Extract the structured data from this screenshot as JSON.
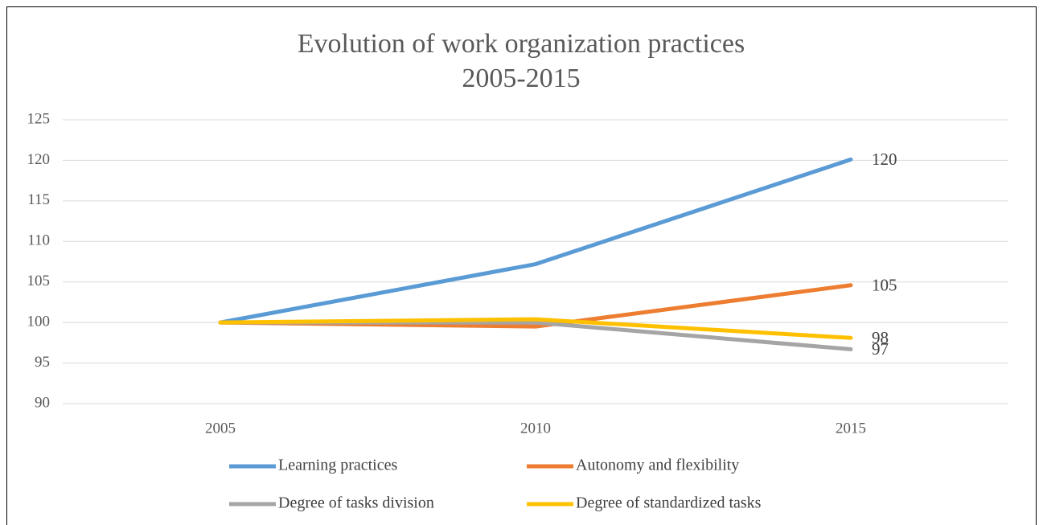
{
  "chart_data": {
    "type": "line",
    "title": "Evolution of work organization practices",
    "subtitle": "2005-2015",
    "categories": [
      "2005",
      "2010",
      "2015"
    ],
    "series": [
      {
        "name": "Learning practices",
        "color": "#5b9bd5",
        "values": [
          100,
          107.2,
          120.1
        ],
        "value_labels": [
          null,
          null,
          "120"
        ]
      },
      {
        "name": "Autonomy and flexibility",
        "color": "#ed7d31",
        "values": [
          100,
          99.5,
          104.6
        ],
        "value_labels": [
          null,
          null,
          "105"
        ]
      },
      {
        "name": "Degree of tasks division",
        "color": "#a5a5a5",
        "values": [
          100,
          100,
          96.7
        ],
        "value_labels": [
          null,
          null,
          "97"
        ]
      },
      {
        "name": "Degree of standardized tasks",
        "color": "#ffc000",
        "values": [
          100,
          100.4,
          98.1
        ],
        "value_labels": [
          null,
          null,
          "98"
        ]
      }
    ],
    "ylim": [
      90,
      125
    ],
    "yticks": [
      90,
      95,
      100,
      105,
      110,
      115,
      120,
      125
    ],
    "grid": true
  }
}
